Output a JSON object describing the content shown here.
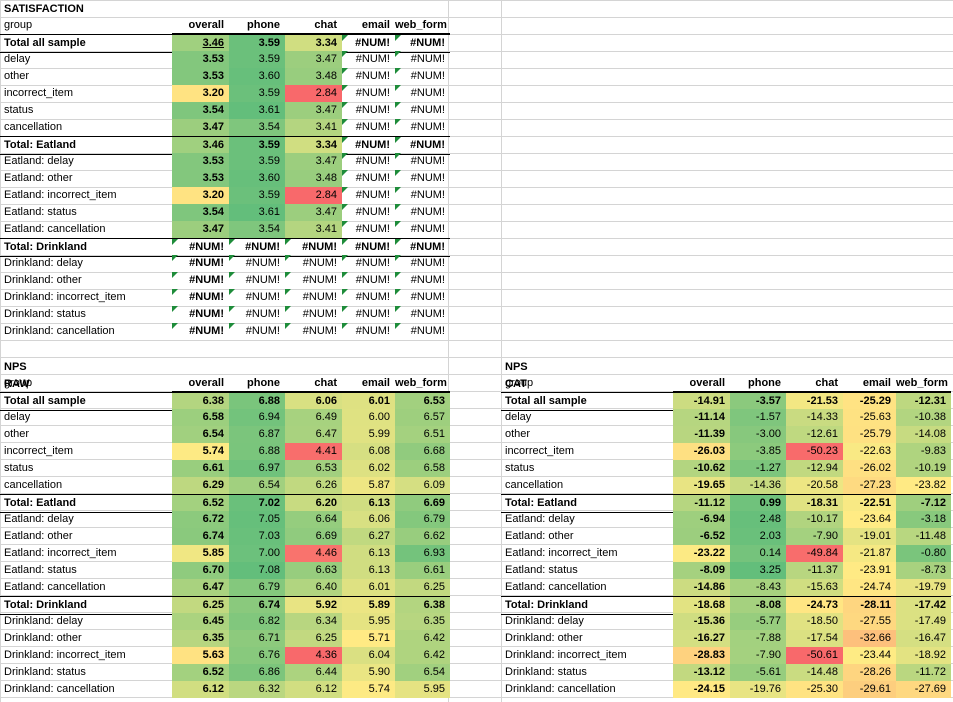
{
  "columns": [
    "group",
    "overall",
    "phone",
    "chat",
    "email",
    "web_form"
  ],
  "satisfaction": {
    "title": "SATISFACTION",
    "rows": [
      {
        "label": "Total all sample",
        "total": true,
        "v": [
          "3.46",
          "3.59",
          "3.34",
          "#NUM!",
          "#NUM!"
        ]
      },
      {
        "label": "delay",
        "v": [
          "3.53",
          "3.59",
          "3.47",
          "#NUM!",
          "#NUM!"
        ]
      },
      {
        "label": "other",
        "v": [
          "3.53",
          "3.60",
          "3.48",
          "#NUM!",
          "#NUM!"
        ]
      },
      {
        "label": "incorrect_item",
        "v": [
          "3.20",
          "3.59",
          "2.84",
          "#NUM!",
          "#NUM!"
        ]
      },
      {
        "label": "status",
        "v": [
          "3.54",
          "3.61",
          "3.47",
          "#NUM!",
          "#NUM!"
        ]
      },
      {
        "label": "cancellation",
        "v": [
          "3.47",
          "3.54",
          "3.41",
          "#NUM!",
          "#NUM!"
        ]
      },
      {
        "label": "Total: Eatland",
        "total": true,
        "v": [
          "3.46",
          "3.59",
          "3.34",
          "#NUM!",
          "#NUM!"
        ]
      },
      {
        "label": "Eatland: delay",
        "v": [
          "3.53",
          "3.59",
          "3.47",
          "#NUM!",
          "#NUM!"
        ]
      },
      {
        "label": "Eatland: other",
        "v": [
          "3.53",
          "3.60",
          "3.48",
          "#NUM!",
          "#NUM!"
        ]
      },
      {
        "label": "Eatland: incorrect_item",
        "v": [
          "3.20",
          "3.59",
          "2.84",
          "#NUM!",
          "#NUM!"
        ]
      },
      {
        "label": "Eatland: status",
        "v": [
          "3.54",
          "3.61",
          "3.47",
          "#NUM!",
          "#NUM!"
        ]
      },
      {
        "label": "Eatland: cancellation",
        "v": [
          "3.47",
          "3.54",
          "3.41",
          "#NUM!",
          "#NUM!"
        ]
      },
      {
        "label": "Total: Drinkland",
        "total": true,
        "v": [
          "#NUM!",
          "#NUM!",
          "#NUM!",
          "#NUM!",
          "#NUM!"
        ]
      },
      {
        "label": "Drinkland: delay",
        "v": [
          "#NUM!",
          "#NUM!",
          "#NUM!",
          "#NUM!",
          "#NUM!"
        ]
      },
      {
        "label": "Drinkland: other",
        "v": [
          "#NUM!",
          "#NUM!",
          "#NUM!",
          "#NUM!",
          "#NUM!"
        ]
      },
      {
        "label": "Drinkland: incorrect_item",
        "v": [
          "#NUM!",
          "#NUM!",
          "#NUM!",
          "#NUM!",
          "#NUM!"
        ]
      },
      {
        "label": "Drinkland: status",
        "v": [
          "#NUM!",
          "#NUM!",
          "#NUM!",
          "#NUM!",
          "#NUM!"
        ]
      },
      {
        "label": "Drinkland: cancellation",
        "v": [
          "#NUM!",
          "#NUM!",
          "#NUM!",
          "#NUM!",
          "#NUM!"
        ]
      }
    ]
  },
  "nps_raw": {
    "title": "NPS RAW",
    "rows": [
      {
        "label": "Total all sample",
        "total": true,
        "v": [
          "6.38",
          "6.88",
          "6.06",
          "6.01",
          "6.53"
        ]
      },
      {
        "label": "delay",
        "v": [
          "6.58",
          "6.94",
          "6.49",
          "6.00",
          "6.57"
        ]
      },
      {
        "label": "other",
        "v": [
          "6.54",
          "6.87",
          "6.47",
          "5.99",
          "6.51"
        ]
      },
      {
        "label": "incorrect_item",
        "v": [
          "5.74",
          "6.88",
          "4.41",
          "6.08",
          "6.68"
        ]
      },
      {
        "label": "status",
        "v": [
          "6.61",
          "6.97",
          "6.53",
          "6.02",
          "6.58"
        ]
      },
      {
        "label": "cancellation",
        "v": [
          "6.29",
          "6.54",
          "6.26",
          "5.87",
          "6.09"
        ]
      },
      {
        "label": "Total: Eatland",
        "total": true,
        "v": [
          "6.52",
          "7.02",
          "6.20",
          "6.13",
          "6.69"
        ]
      },
      {
        "label": "Eatland: delay",
        "v": [
          "6.72",
          "7.05",
          "6.64",
          "6.06",
          "6.79"
        ]
      },
      {
        "label": "Eatland: other",
        "v": [
          "6.74",
          "7.03",
          "6.69",
          "6.27",
          "6.62"
        ]
      },
      {
        "label": "Eatland: incorrect_item",
        "v": [
          "5.85",
          "7.00",
          "4.46",
          "6.13",
          "6.93"
        ]
      },
      {
        "label": "Eatland: status",
        "v": [
          "6.70",
          "7.08",
          "6.63",
          "6.13",
          "6.61"
        ]
      },
      {
        "label": "Eatland: cancellation",
        "v": [
          "6.47",
          "6.79",
          "6.40",
          "6.01",
          "6.25"
        ]
      },
      {
        "label": "Total: Drinkland",
        "total": true,
        "v": [
          "6.25",
          "6.74",
          "5.92",
          "5.89",
          "6.38"
        ]
      },
      {
        "label": "Drinkland: delay",
        "v": [
          "6.45",
          "6.82",
          "6.34",
          "5.95",
          "6.35"
        ]
      },
      {
        "label": "Drinkland: other",
        "v": [
          "6.35",
          "6.71",
          "6.25",
          "5.71",
          "6.42"
        ]
      },
      {
        "label": "Drinkland: incorrect_item",
        "v": [
          "5.63",
          "6.76",
          "4.36",
          "6.04",
          "6.42"
        ]
      },
      {
        "label": "Drinkland: status",
        "v": [
          "6.52",
          "6.86",
          "6.44",
          "5.90",
          "6.54"
        ]
      },
      {
        "label": "Drinkland: cancellation",
        "v": [
          "6.12",
          "6.32",
          "6.12",
          "5.74",
          "5.95"
        ]
      }
    ]
  },
  "nps_cat": {
    "title": "NPS CAT",
    "rows": [
      {
        "label": "Total all sample",
        "total": true,
        "v": [
          "-14.91",
          "-3.57",
          "-21.53",
          "-25.29",
          "-12.31"
        ]
      },
      {
        "label": "delay",
        "v": [
          "-11.14",
          "-1.57",
          "-14.33",
          "-25.63",
          "-10.38"
        ]
      },
      {
        "label": "other",
        "v": [
          "-11.39",
          "-3.00",
          "-12.61",
          "-25.79",
          "-14.08"
        ]
      },
      {
        "label": "incorrect_item",
        "v": [
          "-26.03",
          "-3.85",
          "-50.23",
          "-22.63",
          "-9.83"
        ]
      },
      {
        "label": "status",
        "v": [
          "-10.62",
          "-1.27",
          "-12.94",
          "-26.02",
          "-10.19"
        ]
      },
      {
        "label": "cancellation",
        "v": [
          "-19.65",
          "-14.36",
          "-20.58",
          "-27.23",
          "-23.82"
        ]
      },
      {
        "label": "Total: Eatland",
        "total": true,
        "v": [
          "-11.12",
          "0.99",
          "-18.31",
          "-22.51",
          "-7.12"
        ]
      },
      {
        "label": "Eatland: delay",
        "v": [
          "-6.94",
          "2.48",
          "-10.17",
          "-23.64",
          "-3.18"
        ]
      },
      {
        "label": "Eatland: other",
        "v": [
          "-6.52",
          "2.03",
          "-7.90",
          "-19.01",
          "-11.48"
        ]
      },
      {
        "label": "Eatland: incorrect_item",
        "v": [
          "-23.22",
          "0.14",
          "-49.84",
          "-21.87",
          "-0.80"
        ]
      },
      {
        "label": "Eatland: status",
        "v": [
          "-8.09",
          "3.25",
          "-11.37",
          "-23.91",
          "-8.73"
        ]
      },
      {
        "label": "Eatland: cancellation",
        "v": [
          "-14.86",
          "-8.43",
          "-15.63",
          "-24.74",
          "-19.79"
        ]
      },
      {
        "label": "Total: Drinkland",
        "total": true,
        "v": [
          "-18.68",
          "-8.08",
          "-24.73",
          "-28.11",
          "-17.42"
        ]
      },
      {
        "label": "Drinkland: delay",
        "v": [
          "-15.36",
          "-5.77",
          "-18.50",
          "-27.55",
          "-17.49"
        ]
      },
      {
        "label": "Drinkland: other",
        "v": [
          "-16.27",
          "-7.88",
          "-17.54",
          "-32.66",
          "-16.47"
        ]
      },
      {
        "label": "Drinkland: incorrect_item",
        "v": [
          "-28.83",
          "-7.90",
          "-50.61",
          "-23.44",
          "-18.92"
        ]
      },
      {
        "label": "Drinkland: status",
        "v": [
          "-13.12",
          "-5.61",
          "-14.48",
          "-28.26",
          "-11.72"
        ]
      },
      {
        "label": "Drinkland: cancellation",
        "v": [
          "-24.15",
          "-19.76",
          "-25.30",
          "-29.61",
          "-27.69"
        ]
      }
    ]
  },
  "colors": {
    "red": "#f8696b",
    "yellow": "#ffeb84",
    "green": "#63be7b",
    "error_marker": "#1e8c3a"
  }
}
